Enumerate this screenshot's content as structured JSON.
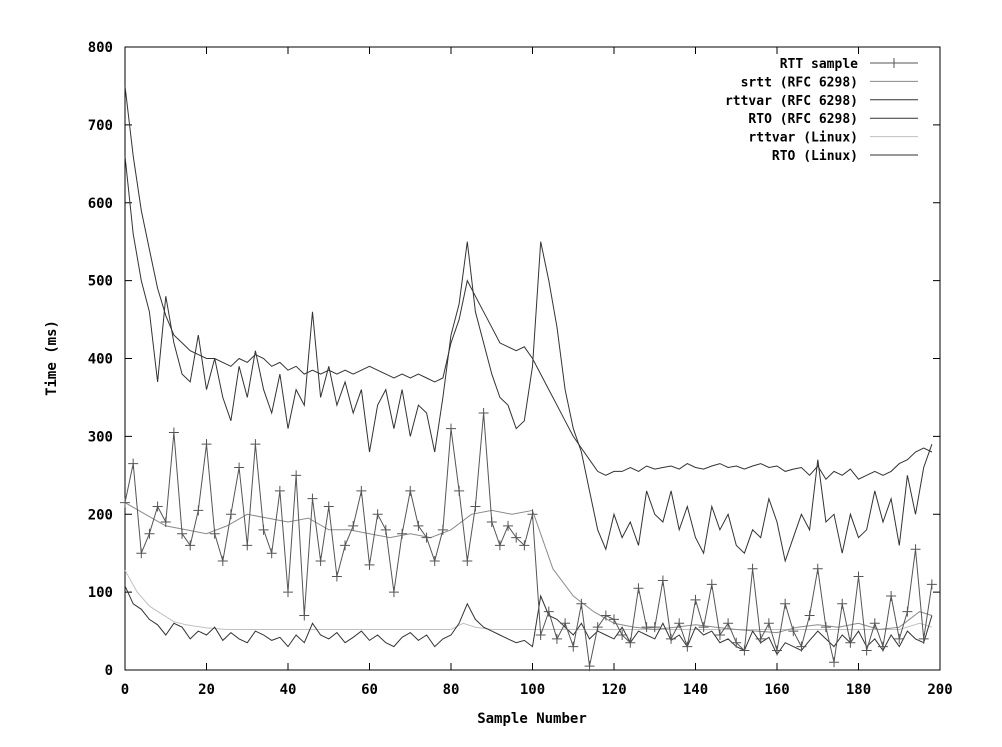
{
  "chart_data": {
    "type": "line",
    "title": "",
    "xlabel": "Sample Number",
    "ylabel": "Time (ms)",
    "xlim": [
      0,
      200
    ],
    "ylim": [
      0,
      800
    ],
    "xticks": [
      "0",
      "20",
      "40",
      "60",
      "80",
      "100",
      "120",
      "140",
      "160",
      "180",
      "200"
    ],
    "yticks": [
      "0",
      "100",
      "200",
      "300",
      "400",
      "500",
      "600",
      "700",
      "800"
    ],
    "grid": false,
    "legend_position": "top-right",
    "series": [
      {
        "name": "RTT sample",
        "color": "#555555",
        "marker": "plus",
        "x": [
          0,
          2,
          4,
          6,
          8,
          10,
          12,
          14,
          16,
          18,
          20,
          22,
          24,
          26,
          28,
          30,
          32,
          34,
          36,
          38,
          40,
          42,
          44,
          46,
          48,
          50,
          52,
          54,
          56,
          58,
          60,
          62,
          64,
          66,
          68,
          70,
          72,
          74,
          76,
          78,
          80,
          82,
          84,
          86,
          88,
          90,
          92,
          94,
          96,
          98,
          100,
          102,
          104,
          106,
          108,
          110,
          112,
          114,
          116,
          118,
          120,
          122,
          124,
          126,
          128,
          130,
          132,
          134,
          136,
          138,
          140,
          142,
          144,
          146,
          148,
          150,
          152,
          154,
          156,
          158,
          160,
          162,
          164,
          166,
          168,
          170,
          172,
          174,
          176,
          178,
          180,
          182,
          184,
          186,
          188,
          190,
          192,
          194,
          196,
          198
        ],
        "y": [
          215,
          265,
          150,
          175,
          210,
          190,
          305,
          175,
          160,
          205,
          290,
          175,
          140,
          200,
          260,
          160,
          290,
          180,
          150,
          230,
          100,
          250,
          70,
          220,
          140,
          210,
          120,
          160,
          185,
          230,
          135,
          200,
          180,
          100,
          175,
          230,
          185,
          170,
          140,
          180,
          310,
          230,
          140,
          210,
          330,
          190,
          160,
          185,
          170,
          160,
          200,
          45,
          75,
          40,
          60,
          30,
          85,
          5,
          55,
          70,
          65,
          45,
          35,
          105,
          55,
          55,
          115,
          40,
          60,
          30,
          90,
          55,
          110,
          45,
          60,
          35,
          25,
          130,
          40,
          60,
          25,
          85,
          50,
          30,
          70,
          130,
          55,
          10,
          85,
          35,
          120,
          25,
          60,
          30,
          95,
          40,
          75,
          155,
          40,
          110
        ]
      },
      {
        "name": "srtt (RFC 6298)",
        "color": "#8a8a8a",
        "x": [
          0,
          5,
          10,
          15,
          20,
          25,
          30,
          35,
          40,
          45,
          50,
          55,
          60,
          65,
          70,
          75,
          80,
          85,
          90,
          95,
          100,
          105,
          110,
          115,
          120,
          125,
          130,
          135,
          140,
          145,
          150,
          155,
          160,
          165,
          170,
          175,
          180,
          185,
          190,
          195,
          198
        ],
        "y": [
          215,
          200,
          185,
          180,
          175,
          185,
          200,
          195,
          190,
          195,
          180,
          180,
          175,
          170,
          175,
          170,
          180,
          200,
          205,
          200,
          205,
          130,
          95,
          75,
          60,
          55,
          52,
          55,
          58,
          55,
          52,
          50,
          48,
          55,
          58,
          55,
          60,
          52,
          55,
          75,
          70
        ]
      },
      {
        "name": "rttvar (RFC 6298)",
        "color": "#333333",
        "x": [
          0,
          2,
          4,
          6,
          8,
          10,
          12,
          14,
          16,
          18,
          20,
          22,
          24,
          26,
          28,
          30,
          32,
          34,
          36,
          38,
          40,
          42,
          44,
          46,
          48,
          50,
          52,
          54,
          56,
          58,
          60,
          62,
          64,
          66,
          68,
          70,
          72,
          74,
          76,
          78,
          80,
          82,
          84,
          86,
          88,
          90,
          92,
          94,
          96,
          98,
          100,
          102,
          104,
          106,
          108,
          110,
          112,
          114,
          116,
          118,
          120,
          122,
          124,
          126,
          128,
          130,
          132,
          134,
          136,
          138,
          140,
          142,
          144,
          146,
          148,
          150,
          152,
          154,
          156,
          158,
          160,
          162,
          164,
          166,
          168,
          170,
          172,
          174,
          176,
          178,
          180,
          182,
          184,
          186,
          188,
          190,
          192,
          194,
          196,
          198
        ],
        "y": [
          108,
          85,
          78,
          65,
          58,
          45,
          60,
          55,
          40,
          50,
          45,
          55,
          38,
          48,
          40,
          35,
          50,
          45,
          38,
          42,
          30,
          45,
          35,
          60,
          45,
          40,
          48,
          35,
          42,
          50,
          38,
          45,
          35,
          30,
          42,
          48,
          38,
          45,
          30,
          40,
          45,
          60,
          85,
          65,
          55,
          50,
          45,
          40,
          35,
          38,
          30,
          95,
          70,
          65,
          55,
          45,
          60,
          40,
          50,
          45,
          40,
          55,
          35,
          50,
          45,
          40,
          60,
          38,
          45,
          30,
          55,
          45,
          50,
          35,
          40,
          30,
          25,
          50,
          35,
          42,
          20,
          35,
          30,
          25,
          38,
          50,
          40,
          30,
          45,
          35,
          50,
          30,
          40,
          25,
          45,
          30,
          50,
          40,
          35,
          70
        ]
      },
      {
        "name": "RTO (RFC 6298)",
        "color": "#333333",
        "x": [
          0,
          2,
          4,
          6,
          8,
          10,
          12,
          14,
          16,
          18,
          20,
          22,
          24,
          26,
          28,
          30,
          32,
          34,
          36,
          38,
          40,
          42,
          44,
          46,
          48,
          50,
          52,
          54,
          56,
          58,
          60,
          62,
          64,
          66,
          68,
          70,
          72,
          74,
          76,
          78,
          80,
          82,
          84,
          86,
          88,
          90,
          92,
          94,
          96,
          98,
          100,
          102,
          104,
          106,
          108,
          110,
          112,
          114,
          116,
          118,
          120,
          122,
          124,
          126,
          128,
          130,
          132,
          134,
          136,
          138,
          140,
          142,
          144,
          146,
          148,
          150,
          152,
          154,
          156,
          158,
          160,
          162,
          164,
          166,
          168,
          170,
          172,
          174,
          176,
          178,
          180,
          182,
          184,
          186,
          188,
          190,
          192,
          194,
          196,
          198
        ],
        "y": [
          660,
          560,
          500,
          460,
          370,
          480,
          420,
          380,
          370,
          430,
          360,
          400,
          350,
          320,
          390,
          350,
          410,
          360,
          330,
          380,
          310,
          360,
          340,
          460,
          350,
          390,
          340,
          370,
          330,
          360,
          280,
          340,
          360,
          310,
          360,
          300,
          340,
          330,
          280,
          350,
          430,
          470,
          550,
          460,
          420,
          380,
          350,
          340,
          310,
          320,
          390,
          550,
          500,
          440,
          360,
          310,
          280,
          230,
          180,
          155,
          200,
          170,
          190,
          160,
          230,
          200,
          190,
          230,
          180,
          210,
          170,
          150,
          210,
          180,
          200,
          160,
          150,
          180,
          170,
          220,
          190,
          140,
          170,
          200,
          180,
          270,
          190,
          200,
          150,
          200,
          170,
          180,
          230,
          190,
          220,
          160,
          250,
          200,
          260,
          290
        ]
      },
      {
        "name": "rttvar (Linux)",
        "color": "#c0c0c0",
        "x": [
          0,
          3,
          6,
          9,
          12,
          15,
          20,
          25,
          30,
          35,
          40,
          50,
          60,
          70,
          80,
          83,
          86,
          90,
          95,
          100,
          105,
          110,
          115,
          120,
          125,
          130,
          135,
          140,
          145,
          150,
          155,
          160,
          165,
          170,
          175,
          180,
          185,
          190,
          195,
          198
        ],
        "y": [
          128,
          100,
          82,
          72,
          62,
          58,
          54,
          52,
          52,
          52,
          52,
          52,
          52,
          52,
          52,
          60,
          55,
          52,
          52,
          52,
          52,
          52,
          52,
          52,
          52,
          52,
          52,
          52,
          52,
          52,
          52,
          52,
          52,
          52,
          52,
          52,
          52,
          52,
          60,
          55
        ]
      },
      {
        "name": "RTO (Linux)",
        "color": "#333333",
        "x": [
          0,
          2,
          4,
          6,
          8,
          10,
          12,
          14,
          16,
          18,
          20,
          22,
          24,
          26,
          28,
          30,
          32,
          34,
          36,
          38,
          40,
          42,
          44,
          46,
          48,
          50,
          52,
          54,
          56,
          58,
          60,
          62,
          64,
          66,
          68,
          70,
          72,
          74,
          76,
          78,
          80,
          82,
          84,
          86,
          88,
          90,
          92,
          94,
          96,
          98,
          100,
          102,
          104,
          106,
          108,
          110,
          112,
          114,
          116,
          118,
          120,
          122,
          124,
          126,
          128,
          130,
          132,
          134,
          136,
          138,
          140,
          142,
          144,
          146,
          148,
          150,
          152,
          154,
          156,
          158,
          160,
          162,
          164,
          166,
          168,
          170,
          172,
          174,
          176,
          178,
          180,
          182,
          184,
          186,
          188,
          190,
          192,
          194,
          196,
          198
        ],
        "y": [
          750,
          660,
          590,
          540,
          490,
          455,
          430,
          420,
          410,
          405,
          400,
          400,
          395,
          390,
          400,
          395,
          405,
          400,
          390,
          395,
          385,
          390,
          380,
          385,
          380,
          385,
          380,
          385,
          380,
          385,
          390,
          385,
          380,
          375,
          380,
          375,
          380,
          375,
          370,
          375,
          420,
          450,
          500,
          480,
          460,
          440,
          420,
          415,
          410,
          415,
          400,
          380,
          360,
          340,
          320,
          300,
          285,
          270,
          255,
          250,
          255,
          255,
          260,
          255,
          262,
          258,
          260,
          262,
          258,
          265,
          260,
          258,
          262,
          265,
          260,
          262,
          258,
          262,
          265,
          260,
          262,
          255,
          258,
          260,
          250,
          262,
          245,
          255,
          250,
          258,
          245,
          250,
          255,
          250,
          255,
          265,
          270,
          280,
          285,
          280
        ]
      }
    ]
  }
}
